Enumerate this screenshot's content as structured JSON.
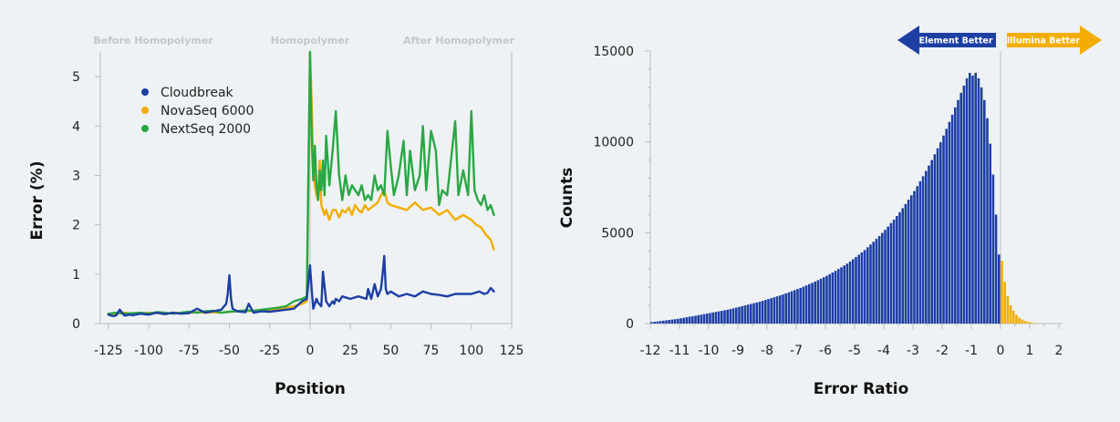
{
  "chart_data": [
    {
      "type": "line",
      "xlabel": "Position",
      "ylabel": "Error (%)",
      "xlim": [
        -130,
        125
      ],
      "ylim": [
        0,
        5.5
      ],
      "xticks": [
        "-125",
        "-100",
        "-75",
        "-50",
        "-25",
        "0",
        "25",
        "50",
        "75",
        "100",
        "125"
      ],
      "yticks": [
        "0",
        "1",
        "2",
        "3",
        "4",
        "5"
      ],
      "regions": [
        "Before Homopolymer",
        "Homopolymer",
        "After Homopolymer"
      ],
      "legend": [
        {
          "name": "Cloudbreak",
          "color": "#1d3fa4"
        },
        {
          "name": "NovaSeq 6000",
          "color": "#f2ad00"
        },
        {
          "name": "NextSeq 2000",
          "color": "#2aa745"
        }
      ],
      "series": [
        {
          "name": "NovaSeq 6000",
          "color": "#f2ad00",
          "x": [
            -125,
            -120,
            -115,
            -110,
            -105,
            -100,
            -95,
            -90,
            -85,
            -80,
            -75,
            -70,
            -65,
            -60,
            -55,
            -50,
            -45,
            -40,
            -35,
            -30,
            -25,
            -20,
            -15,
            -10,
            -5,
            -2,
            0,
            1,
            2,
            3,
            4,
            5,
            6,
            7,
            8,
            9,
            10,
            12,
            14,
            16,
            18,
            20,
            22,
            24,
            26,
            28,
            30,
            32,
            34,
            36,
            38,
            40,
            42,
            44,
            46,
            48,
            50,
            55,
            60,
            65,
            70,
            75,
            80,
            85,
            90,
            95,
            100,
            103,
            106,
            109,
            112,
            114
          ],
          "y": [
            0.2,
            0.2,
            0.22,
            0.2,
            0.2,
            0.22,
            0.21,
            0.2,
            0.22,
            0.21,
            0.22,
            0.23,
            0.22,
            0.23,
            0.22,
            0.24,
            0.25,
            0.25,
            0.26,
            0.27,
            0.28,
            0.3,
            0.32,
            0.35,
            0.4,
            0.45,
            5.5,
            4.5,
            3.2,
            2.8,
            2.6,
            2.5,
            3.3,
            2.4,
            2.3,
            2.2,
            2.3,
            2.1,
            2.3,
            2.3,
            2.15,
            2.3,
            2.25,
            2.35,
            2.2,
            2.4,
            2.3,
            2.25,
            2.4,
            2.3,
            2.35,
            2.4,
            2.45,
            2.6,
            2.7,
            2.45,
            2.4,
            2.35,
            2.3,
            2.45,
            2.3,
            2.35,
            2.2,
            2.3,
            2.1,
            2.2,
            2.1,
            2.0,
            1.95,
            1.8,
            1.7,
            1.5
          ]
        },
        {
          "name": "NextSeq 2000",
          "color": "#2aa745",
          "x": [
            -125,
            -120,
            -115,
            -110,
            -105,
            -100,
            -95,
            -90,
            -85,
            -80,
            -75,
            -70,
            -65,
            -60,
            -55,
            -50,
            -45,
            -40,
            -35,
            -30,
            -25,
            -20,
            -15,
            -10,
            -5,
            -2,
            0,
            1,
            2,
            3,
            4,
            5,
            6,
            7,
            8,
            9,
            10,
            12,
            14,
            16,
            18,
            20,
            22,
            24,
            26,
            28,
            30,
            32,
            34,
            36,
            38,
            40,
            42,
            44,
            46,
            48,
            50,
            52,
            55,
            58,
            60,
            62,
            65,
            68,
            70,
            72,
            75,
            78,
            80,
            82,
            85,
            88,
            90,
            92,
            95,
            98,
            100,
            102,
            104,
            106,
            108,
            110,
            112,
            114
          ],
          "y": [
            0.2,
            0.22,
            0.2,
            0.21,
            0.22,
            0.2,
            0.23,
            0.22,
            0.2,
            0.22,
            0.24,
            0.22,
            0.25,
            0.26,
            0.22,
            0.24,
            0.25,
            0.27,
            0.26,
            0.28,
            0.3,
            0.32,
            0.35,
            0.45,
            0.5,
            0.55,
            5.5,
            3.8,
            2.9,
            3.6,
            2.8,
            2.5,
            3.1,
            2.7,
            3.3,
            2.6,
            3.8,
            2.8,
            3.5,
            4.3,
            3.0,
            2.5,
            3.0,
            2.6,
            2.8,
            2.7,
            2.6,
            2.8,
            2.5,
            2.6,
            2.5,
            3.0,
            2.7,
            2.8,
            2.6,
            3.9,
            3.2,
            2.6,
            3.0,
            3.7,
            2.6,
            3.5,
            2.7,
            3.0,
            4.0,
            2.7,
            3.9,
            3.5,
            2.4,
            2.7,
            2.6,
            3.5,
            4.1,
            2.6,
            3.1,
            2.6,
            4.3,
            2.7,
            2.5,
            2.4,
            2.6,
            2.3,
            2.4,
            2.2
          ]
        },
        {
          "name": "Cloudbreak",
          "color": "#1d3fa4",
          "x": [
            -125,
            -122,
            -120,
            -118,
            -115,
            -112,
            -110,
            -105,
            -100,
            -95,
            -90,
            -85,
            -80,
            -75,
            -70,
            -65,
            -60,
            -55,
            -52,
            -51,
            -50,
            -49,
            -48,
            -45,
            -40,
            -38,
            -35,
            -30,
            -25,
            -20,
            -15,
            -10,
            -5,
            -2,
            0,
            1,
            2,
            4,
            5,
            7,
            8,
            10,
            12,
            14,
            15,
            16,
            18,
            20,
            25,
            30,
            35,
            36,
            38,
            40,
            42,
            44,
            45,
            46,
            47,
            48,
            50,
            55,
            60,
            65,
            70,
            75,
            80,
            85,
            90,
            95,
            100,
            105,
            108,
            110,
            112,
            114
          ],
          "y": [
            0.18,
            0.15,
            0.17,
            0.28,
            0.16,
            0.18,
            0.17,
            0.2,
            0.18,
            0.22,
            0.19,
            0.22,
            0.2,
            0.21,
            0.3,
            0.22,
            0.25,
            0.28,
            0.4,
            0.6,
            0.98,
            0.5,
            0.3,
            0.25,
            0.23,
            0.4,
            0.22,
            0.25,
            0.24,
            0.26,
            0.28,
            0.3,
            0.45,
            0.5,
            1.18,
            0.7,
            0.3,
            0.5,
            0.42,
            0.35,
            1.05,
            0.45,
            0.35,
            0.45,
            0.4,
            0.5,
            0.45,
            0.55,
            0.5,
            0.55,
            0.5,
            0.7,
            0.5,
            0.8,
            0.55,
            0.7,
            1.0,
            1.37,
            0.7,
            0.6,
            0.65,
            0.55,
            0.6,
            0.55,
            0.65,
            0.6,
            0.58,
            0.55,
            0.6,
            0.6,
            0.6,
            0.65,
            0.6,
            0.62,
            0.72,
            0.65
          ]
        }
      ]
    },
    {
      "type": "bar",
      "xlabel": "Error Ratio",
      "ylabel": "Counts",
      "xlim": [
        -12,
        2
      ],
      "ylim": [
        0,
        15000
      ],
      "xticks": [
        "-12",
        "-11",
        "-10",
        "-9",
        "-8",
        "-7",
        "-6",
        "-5",
        "-4",
        "-3",
        "-2",
        "-1",
        "0",
        "1",
        "2"
      ],
      "yticks": [
        "0",
        "5000",
        "10000",
        "15000"
      ],
      "bin_width": 0.1,
      "annotations": [
        {
          "text": "Element Better",
          "color": "#1d3fa4",
          "direction": "left"
        },
        {
          "text": "Illumina Better",
          "color": "#f2ad00",
          "direction": "right"
        }
      ],
      "series": [
        {
          "name": "Element Better",
          "color": "#1d3fa4",
          "x": [
            -11.95,
            -11.85,
            -11.75,
            -11.65,
            -11.55,
            -11.45,
            -11.35,
            -11.25,
            -11.15,
            -11.05,
            -10.95,
            -10.85,
            -10.75,
            -10.65,
            -10.55,
            -10.45,
            -10.35,
            -10.25,
            -10.15,
            -10.05,
            -9.95,
            -9.85,
            -9.75,
            -9.65,
            -9.55,
            -9.45,
            -9.35,
            -9.25,
            -9.15,
            -9.05,
            -8.95,
            -8.85,
            -8.75,
            -8.65,
            -8.55,
            -8.45,
            -8.35,
            -8.25,
            -8.15,
            -8.05,
            -7.95,
            -7.85,
            -7.75,
            -7.65,
            -7.55,
            -7.45,
            -7.35,
            -7.25,
            -7.15,
            -7.05,
            -6.95,
            -6.85,
            -6.75,
            -6.65,
            -6.55,
            -6.45,
            -6.35,
            -6.25,
            -6.15,
            -6.05,
            -5.95,
            -5.85,
            -5.75,
            -5.65,
            -5.55,
            -5.45,
            -5.35,
            -5.25,
            -5.15,
            -5.05,
            -4.95,
            -4.85,
            -4.75,
            -4.65,
            -4.55,
            -4.45,
            -4.35,
            -4.25,
            -4.15,
            -4.05,
            -3.95,
            -3.85,
            -3.75,
            -3.65,
            -3.55,
            -3.45,
            -3.35,
            -3.25,
            -3.15,
            -3.05,
            -2.95,
            -2.85,
            -2.75,
            -2.65,
            -2.55,
            -2.45,
            -2.35,
            -2.25,
            -2.15,
            -2.05,
            -1.95,
            -1.85,
            -1.75,
            -1.65,
            -1.55,
            -1.45,
            -1.35,
            -1.25,
            -1.15,
            -1.05,
            -0.95,
            -0.85,
            -0.75,
            -0.65,
            -0.55,
            -0.45,
            -0.35,
            -0.25,
            -0.15,
            -0.05
          ],
          "values": [
            80,
            100,
            120,
            140,
            160,
            180,
            200,
            220,
            240,
            260,
            290,
            320,
            350,
            380,
            400,
            430,
            460,
            490,
            520,
            550,
            580,
            610,
            640,
            670,
            700,
            730,
            760,
            800,
            840,
            880,
            920,
            960,
            1000,
            1040,
            1080,
            1120,
            1160,
            1200,
            1250,
            1300,
            1350,
            1400,
            1450,
            1500,
            1550,
            1600,
            1660,
            1720,
            1780,
            1840,
            1900,
            1960,
            2030,
            2100,
            2170,
            2240,
            2310,
            2390,
            2470,
            2550,
            2630,
            2720,
            2810,
            2900,
            3000,
            3100,
            3200,
            3300,
            3420,
            3540,
            3660,
            3790,
            3920,
            4050,
            4200,
            4350,
            4500,
            4660,
            4820,
            4990,
            5160,
            5340,
            5530,
            5720,
            5920,
            6130,
            6350,
            6580,
            6820,
            7060,
            7300,
            7560,
            7830,
            8110,
            8400,
            8700,
            9000,
            9320,
            9650,
            9980,
            10350,
            10720,
            11100,
            11500,
            11900,
            12300,
            12700,
            13100,
            13500,
            13800,
            13650,
            13800,
            13500,
            13000,
            12300,
            11300,
            9900,
            8200,
            6000,
            3800
          ]
        },
        {
          "name": "Illumina Better",
          "color": "#f2ad00",
          "x": [
            0.05,
            0.15,
            0.25,
            0.35,
            0.45,
            0.55,
            0.65,
            0.75,
            0.85,
            0.95,
            1.05,
            1.15,
            1.25
          ],
          "values": [
            3450,
            2300,
            1500,
            1000,
            700,
            480,
            320,
            220,
            150,
            100,
            60,
            30,
            10
          ]
        }
      ]
    }
  ]
}
